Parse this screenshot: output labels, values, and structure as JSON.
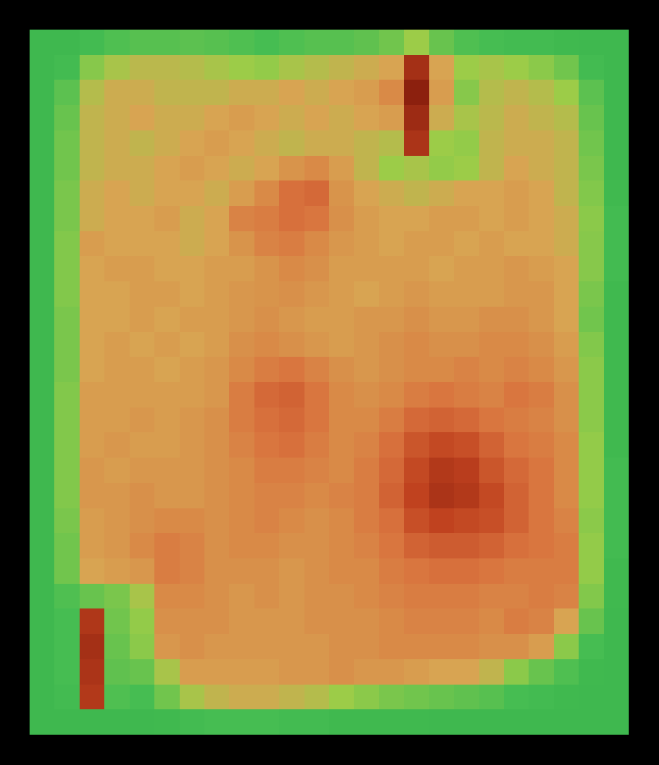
{
  "chart_data": {
    "type": "heatmap",
    "tick_labels": false,
    "zlim": [
      0,
      100
    ],
    "z": [
      [
        15,
        15,
        18,
        22,
        24,
        24,
        25,
        24,
        22,
        20,
        22,
        24,
        24,
        26,
        30,
        40,
        28,
        22,
        20,
        18,
        18,
        16,
        15,
        15
      ],
      [
        15,
        18,
        35,
        42,
        45,
        45,
        44,
        42,
        40,
        38,
        42,
        44,
        46,
        48,
        50,
        88,
        50,
        40,
        42,
        40,
        36,
        30,
        18,
        15
      ],
      [
        15,
        25,
        44,
        48,
        48,
        46,
        46,
        46,
        48,
        48,
        50,
        48,
        50,
        52,
        58,
        95,
        52,
        35,
        44,
        46,
        44,
        40,
        25,
        15
      ],
      [
        15,
        28,
        46,
        48,
        50,
        48,
        48,
        50,
        52,
        50,
        48,
        50,
        48,
        50,
        52,
        90,
        48,
        42,
        45,
        48,
        46,
        44,
        28,
        15
      ],
      [
        15,
        30,
        46,
        48,
        46,
        48,
        50,
        52,
        50,
        48,
        46,
        48,
        48,
        46,
        44,
        86,
        40,
        38,
        46,
        48,
        48,
        46,
        30,
        15
      ],
      [
        15,
        30,
        46,
        48,
        48,
        50,
        52,
        50,
        48,
        50,
        55,
        58,
        52,
        46,
        40,
        42,
        38,
        40,
        46,
        50,
        48,
        46,
        32,
        15
      ],
      [
        15,
        32,
        48,
        50,
        48,
        50,
        50,
        48,
        52,
        58,
        66,
        68,
        55,
        50,
        48,
        46,
        48,
        50,
        50,
        52,
        50,
        46,
        34,
        16
      ],
      [
        15,
        32,
        48,
        50,
        50,
        52,
        48,
        50,
        60,
        62,
        66,
        64,
        56,
        52,
        50,
        50,
        52,
        52,
        50,
        52,
        50,
        48,
        36,
        18
      ],
      [
        15,
        34,
        52,
        50,
        50,
        50,
        48,
        50,
        55,
        60,
        62,
        58,
        54,
        52,
        50,
        52,
        52,
        50,
        52,
        50,
        50,
        48,
        35,
        18
      ],
      [
        15,
        34,
        50,
        52,
        52,
        50,
        50,
        52,
        52,
        55,
        58,
        56,
        52,
        52,
        52,
        52,
        50,
        52,
        52,
        54,
        52,
        50,
        35,
        18
      ],
      [
        15,
        34,
        50,
        50,
        52,
        52,
        50,
        52,
        54,
        55,
        56,
        54,
        52,
        50,
        52,
        54,
        52,
        52,
        52,
        54,
        54,
        50,
        32,
        16
      ],
      [
        15,
        32,
        50,
        50,
        52,
        50,
        52,
        52,
        54,
        56,
        54,
        52,
        52,
        54,
        54,
        56,
        54,
        54,
        56,
        56,
        54,
        50,
        30,
        16
      ],
      [
        15,
        32,
        50,
        52,
        50,
        52,
        50,
        52,
        56,
        58,
        56,
        54,
        52,
        54,
        56,
        58,
        56,
        56,
        58,
        58,
        56,
        52,
        34,
        16
      ],
      [
        15,
        32,
        50,
        52,
        52,
        50,
        52,
        54,
        58,
        62,
        64,
        60,
        56,
        54,
        56,
        58,
        58,
        60,
        58,
        60,
        58,
        54,
        36,
        16
      ],
      [
        15,
        34,
        52,
        52,
        52,
        52,
        52,
        54,
        62,
        68,
        70,
        64,
        58,
        56,
        58,
        62,
        64,
        62,
        60,
        64,
        62,
        56,
        36,
        16
      ],
      [
        15,
        34,
        52,
        52,
        54,
        52,
        54,
        56,
        62,
        66,
        68,
        64,
        58,
        58,
        62,
        68,
        70,
        68,
        64,
        62,
        60,
        56,
        36,
        16
      ],
      [
        15,
        34,
        52,
        54,
        52,
        52,
        54,
        56,
        60,
        64,
        66,
        62,
        58,
        60,
        66,
        74,
        78,
        76,
        70,
        64,
        62,
        58,
        38,
        16
      ],
      [
        15,
        34,
        54,
        52,
        54,
        54,
        54,
        56,
        58,
        62,
        62,
        60,
        58,
        62,
        68,
        78,
        84,
        82,
        74,
        68,
        64,
        58,
        38,
        18
      ],
      [
        15,
        34,
        54,
        54,
        56,
        54,
        54,
        56,
        58,
        60,
        60,
        58,
        60,
        62,
        70,
        80,
        86,
        84,
        78,
        70,
        64,
        58,
        38,
        18
      ],
      [
        15,
        32,
        52,
        54,
        56,
        58,
        58,
        56,
        58,
        60,
        58,
        56,
        58,
        62,
        66,
        76,
        80,
        78,
        76,
        70,
        64,
        60,
        36,
        18
      ],
      [
        15,
        30,
        52,
        54,
        58,
        62,
        60,
        56,
        58,
        58,
        56,
        56,
        58,
        60,
        64,
        70,
        72,
        72,
        70,
        66,
        64,
        62,
        38,
        18
      ],
      [
        15,
        30,
        50,
        52,
        54,
        62,
        60,
        56,
        56,
        56,
        54,
        56,
        58,
        58,
        62,
        64,
        66,
        66,
        64,
        62,
        62,
        62,
        38,
        16
      ],
      [
        15,
        22,
        28,
        32,
        42,
        58,
        58,
        56,
        54,
        56,
        54,
        56,
        56,
        58,
        60,
        62,
        62,
        62,
        60,
        60,
        62,
        60,
        34,
        16
      ],
      [
        15,
        20,
        85,
        30,
        38,
        56,
        56,
        56,
        54,
        54,
        54,
        56,
        56,
        56,
        58,
        60,
        60,
        60,
        58,
        62,
        60,
        50,
        28,
        15
      ],
      [
        15,
        20,
        88,
        28,
        36,
        54,
        56,
        54,
        54,
        54,
        54,
        54,
        56,
        56,
        58,
        58,
        58,
        58,
        56,
        56,
        52,
        36,
        20,
        15
      ],
      [
        15,
        20,
        86,
        26,
        28,
        42,
        52,
        52,
        52,
        52,
        54,
        54,
        56,
        54,
        54,
        52,
        50,
        50,
        46,
        36,
        28,
        22,
        16,
        15
      ],
      [
        15,
        18,
        84,
        22,
        20,
        30,
        42,
        46,
        48,
        48,
        46,
        44,
        40,
        36,
        32,
        30,
        28,
        26,
        24,
        20,
        18,
        16,
        15,
        15
      ],
      [
        15,
        15,
        15,
        15,
        15,
        16,
        18,
        20,
        20,
        20,
        18,
        18,
        16,
        16,
        16,
        16,
        15,
        15,
        15,
        15,
        15,
        15,
        15,
        15
      ]
    ]
  }
}
